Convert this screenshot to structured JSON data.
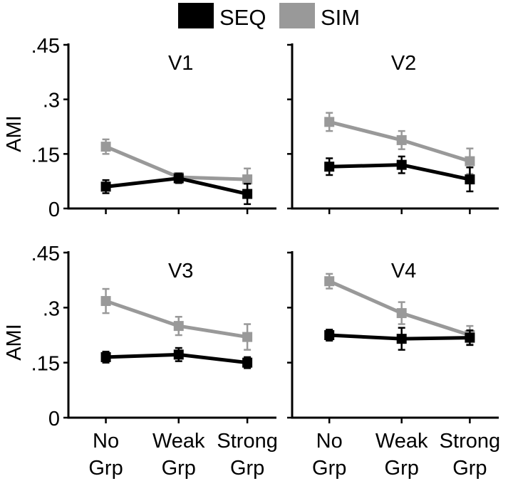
{
  "chart_data": {
    "type": "line",
    "layout": "2x2 grid of panels",
    "legend": {
      "placement": "top-center",
      "entries": [
        {
          "label": "SEQ",
          "color": "#000000"
        },
        {
          "label": "SIM",
          "color": "#999999"
        }
      ]
    },
    "ylabel": "AMI",
    "ylim": [
      0,
      0.45
    ],
    "yticks": [
      0,
      0.15,
      0.3,
      0.45
    ],
    "ytick_labels": [
      "0",
      ".15",
      ".3",
      ".45"
    ],
    "categories": [
      "No Grp",
      "Weak Grp",
      "Strong Grp"
    ],
    "xtick_lines": [
      [
        "No",
        "Grp"
      ],
      [
        "Weak",
        "Grp"
      ],
      [
        "Strong",
        "Grp"
      ]
    ],
    "panels": [
      {
        "title": "V1",
        "series": [
          {
            "name": "SEQ",
            "color": "#000000",
            "values": [
              0.06,
              0.083,
              0.04
            ],
            "errors": [
              0.018,
              0.013,
              0.028
            ]
          },
          {
            "name": "SIM",
            "color": "#999999",
            "values": [
              0.17,
              0.086,
              0.08
            ],
            "errors": [
              0.02,
              0.01,
              0.03
            ]
          }
        ]
      },
      {
        "title": "V2",
        "series": [
          {
            "name": "SEQ",
            "color": "#000000",
            "values": [
              0.115,
              0.12,
              0.08
            ],
            "errors": [
              0.023,
              0.023,
              0.033
            ]
          },
          {
            "name": "SIM",
            "color": "#999999",
            "values": [
              0.238,
              0.188,
              0.13
            ],
            "errors": [
              0.025,
              0.025,
              0.035
            ]
          }
        ]
      },
      {
        "title": "V3",
        "series": [
          {
            "name": "SEQ",
            "color": "#000000",
            "values": [
              0.165,
              0.172,
              0.15
            ],
            "errors": [
              0.015,
              0.018,
              0.015
            ]
          },
          {
            "name": "SIM",
            "color": "#999999",
            "values": [
              0.318,
              0.25,
              0.22
            ],
            "errors": [
              0.033,
              0.025,
              0.035
            ]
          }
        ]
      },
      {
        "title": "V4",
        "series": [
          {
            "name": "SEQ",
            "color": "#000000",
            "values": [
              0.225,
              0.215,
              0.218
            ],
            "errors": [
              0.015,
              0.03,
              0.02
            ]
          },
          {
            "name": "SIM",
            "color": "#999999",
            "values": [
              0.372,
              0.285,
              0.225
            ],
            "errors": [
              0.02,
              0.03,
              0.025
            ]
          }
        ]
      }
    ]
  }
}
